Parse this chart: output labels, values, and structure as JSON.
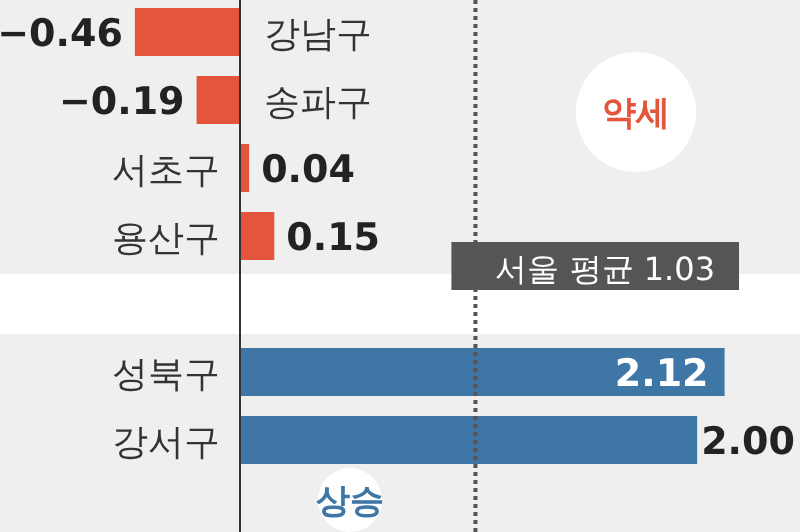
{
  "chart_data": {
    "type": "bar",
    "orientation": "horizontal",
    "categories": [
      "강남구",
      "송파구",
      "서초구",
      "용산구",
      null,
      "성북구",
      "강서구"
    ],
    "values": [
      -0.46,
      -0.19,
      0.04,
      0.15,
      null,
      2.12,
      2.0
    ],
    "colors": [
      "#e4553c",
      "#e4553c",
      "#e4553c",
      "#e4553c",
      null,
      "#3e76a6",
      "#3e76a6"
    ],
    "value_labels": [
      "−0.46",
      "−0.19",
      "0.04",
      "0.15",
      null,
      "2.12",
      "2.00"
    ],
    "xlim": [
      -1.05,
      2.45
    ],
    "ref_lines": [
      {
        "axis": "x",
        "value": 1.03,
        "label": "서울 평균 1.03",
        "color": "#555555",
        "line_style": "dotted"
      }
    ],
    "annotations": [
      "약세",
      "상승"
    ]
  }
}
